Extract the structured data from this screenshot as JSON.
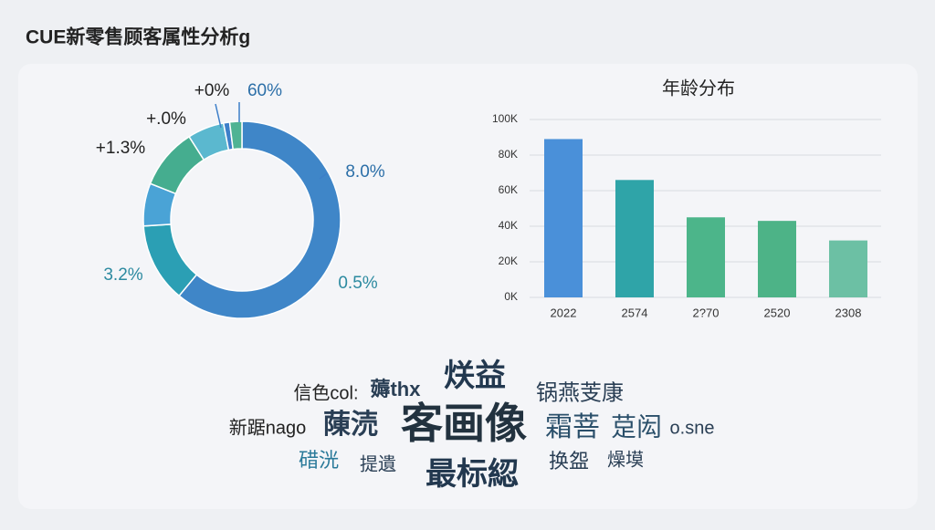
{
  "title": "CUE新零售顾客属性分析g",
  "chart_data": [
    {
      "type": "donut",
      "values": [
        61,
        13,
        7,
        10,
        6,
        1,
        2
      ],
      "colors": [
        "#3f86c8",
        "#2b9fb4",
        "#4aa3d6",
        "#45ad8f",
        "#5bb8cf",
        "#3d7fc9",
        "#4fb394"
      ],
      "annotations": [
        "+0%",
        "60%",
        "+.0%",
        "+1.3%",
        "8.0%",
        "3.2%",
        "0.5%"
      ]
    },
    {
      "type": "bar",
      "title": "年龄分布",
      "categories": [
        "2022",
        "2574",
        "2?70",
        "2520",
        "2308"
      ],
      "values": [
        89000,
        66000,
        45000,
        43000,
        32000
      ],
      "colors": [
        "#4a90d9",
        "#2fa4a8",
        "#4cb58a",
        "#4db387",
        "#6cc0a4"
      ],
      "ylim": [
        0,
        100000
      ],
      "yticks": [
        {
          "value": 0,
          "label": "0K"
        },
        {
          "value": 20000,
          "label": "20K"
        },
        {
          "value": 40000,
          "label": "40K"
        },
        {
          "value": 60000,
          "label": "60K"
        },
        {
          "value": 80000,
          "label": "80K"
        },
        {
          "value": 100000,
          "label": "100K"
        }
      ],
      "grid": true
    }
  ],
  "word_cloud": {
    "words": [
      "信色col:",
      "薅thx",
      "烪益",
      "锅燕芰康",
      "新踞nago",
      "蔯涜",
      "客画像",
      "霜菩",
      "莡闳",
      "o.sne",
      "碏洸",
      "提遺",
      "最标綛",
      "换盌",
      "燥塻"
    ]
  }
}
